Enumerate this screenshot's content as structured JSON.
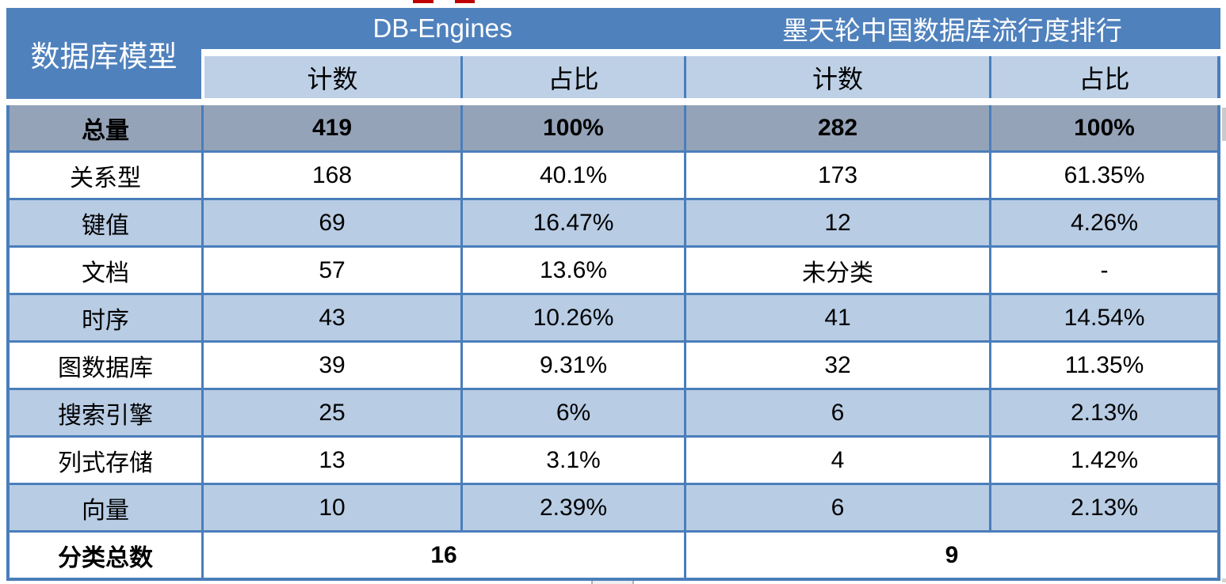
{
  "colors": {
    "header_blue": "#4F81BD",
    "subheader_blue": "#BDD0E6",
    "band_blue": "#B8CCE4",
    "total_row_gray": "#95A3B8",
    "border_blue": "#4A7EBB",
    "text_dark": "#000000",
    "header_text": "#FFFFFF",
    "cropped_red_text": "#C00000"
  },
  "chart_data": {
    "type": "table",
    "header": {
      "row_label": "数据库模型",
      "groups": [
        {
          "label": "DB-Engines",
          "subcolumns": [
            "计数",
            "占比"
          ]
        },
        {
          "label": "墨天轮中国数据库流行度排行",
          "subcolumns": [
            "计数",
            "占比"
          ]
        }
      ]
    },
    "rows": [
      {
        "label": "总量",
        "values": [
          "419",
          "100%",
          "282",
          "100%"
        ],
        "emphasis": "total"
      },
      {
        "label": "关系型",
        "values": [
          "168",
          "40.1%",
          "173",
          "61.35%"
        ],
        "emphasis": "none"
      },
      {
        "label": "键值",
        "values": [
          "69",
          "16.47%",
          "12",
          "4.26%"
        ],
        "emphasis": "none"
      },
      {
        "label": "文档",
        "values": [
          "57",
          "13.6%",
          "未分类",
          "-"
        ],
        "emphasis": "none"
      },
      {
        "label": "时序",
        "values": [
          "43",
          "10.26%",
          "41",
          "14.54%"
        ],
        "emphasis": "none"
      },
      {
        "label": "图数据库",
        "values": [
          "39",
          "9.31%",
          "32",
          "11.35%"
        ],
        "emphasis": "none"
      },
      {
        "label": "搜索引擎",
        "values": [
          "25",
          "6%",
          "6",
          "2.13%"
        ],
        "emphasis": "none"
      },
      {
        "label": "列式存储",
        "values": [
          "13",
          "3.1%",
          "4",
          "1.42%"
        ],
        "emphasis": "none"
      },
      {
        "label": "向量",
        "values": [
          "10",
          "2.39%",
          "6",
          "2.13%"
        ],
        "emphasis": "none"
      }
    ],
    "footer": {
      "label": "分类总数",
      "db_engines_total": "16",
      "modb_total": "9"
    }
  }
}
